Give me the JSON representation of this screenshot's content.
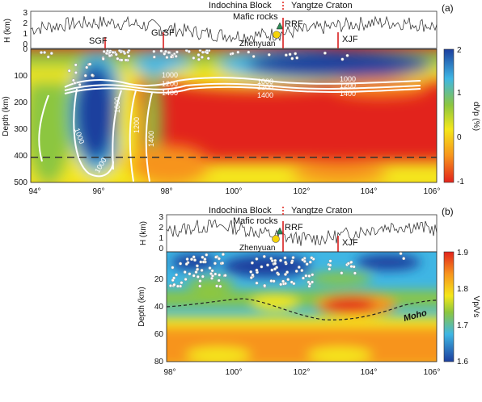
{
  "chart_data": [
    {
      "panel_label": "(a)",
      "type": "heatmap",
      "top_profile": {
        "ylabel": "H (km)",
        "yticks": [
          "3",
          "2",
          "1",
          "0"
        ],
        "block_labels": [
          "Indochina Block",
          "Yangtze Craton"
        ],
        "feature_labels": [
          "Mafic rocks",
          "Zhenyuan"
        ],
        "faults": [
          {
            "name": "SGF",
            "lon": 96.2
          },
          {
            "name": "GLSF",
            "lon": 97.8
          },
          {
            "name": "RRF",
            "lon": 101.45
          },
          {
            "name": "XJF",
            "lon": 103.2
          }
        ]
      },
      "xlabel": "",
      "ylabel": "Depth (km)",
      "xticks": [
        "94°",
        "96°",
        "98°",
        "100°",
        "102°",
        "104°",
        "106°"
      ],
      "yticks": [
        "0",
        "100",
        "200",
        "300",
        "400",
        "500"
      ],
      "xlim": [
        94,
        106
      ],
      "ylim": [
        0,
        500
      ],
      "colorbar": {
        "label": "dVp (%)",
        "ticks": [
          "2",
          "1",
          "0",
          "-1"
        ],
        "range": [
          -1,
          2
        ]
      },
      "isotherm_labels": [
        "1000",
        "1200",
        "1400",
        "1000",
        "1200",
        "1400",
        "1000",
        "1200",
        "1400",
        "1000",
        "1200",
        "1400",
        "1000",
        "1000"
      ],
      "dashed_line_depth": 410
    },
    {
      "panel_label": "(b)",
      "type": "heatmap",
      "top_profile": {
        "ylabel": "H (km)",
        "yticks": [
          "3",
          "2",
          "1",
          "0"
        ],
        "block_labels": [
          "Indochina Block",
          "Yangtze Craton"
        ],
        "feature_labels": [
          "Mafic rocks",
          "Zhenyuan"
        ],
        "faults": [
          {
            "name": "RRF",
            "lon": 101.45
          },
          {
            "name": "XJF",
            "lon": 103.2
          }
        ]
      },
      "xlabel": "",
      "ylabel": "Depth (km)",
      "xticks": [
        "98°",
        "100°",
        "102°",
        "104°",
        "106°"
      ],
      "yticks": [
        "20",
        "40",
        "60",
        "80"
      ],
      "xlim": [
        98,
        106
      ],
      "ylim": [
        0,
        80
      ],
      "colorbar": {
        "label": "Vp/Vs",
        "ticks": [
          "1.9",
          "1.8",
          "1.7",
          "1.6"
        ],
        "range": [
          1.6,
          1.9
        ]
      },
      "moho_label": "Moho"
    }
  ],
  "colors": {
    "red": "#e2231c",
    "orange": "#f7941d",
    "yellow": "#f4e71a",
    "green": "#8cc63f",
    "cyan": "#3fb6e4",
    "blue": "#1c3f9e"
  }
}
